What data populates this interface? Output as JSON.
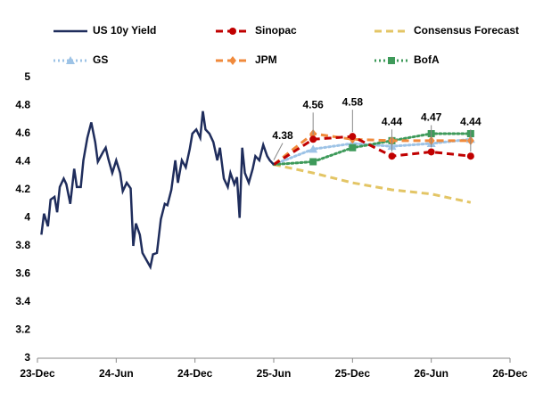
{
  "chart_data": {
    "type": "line",
    "xlim": [
      0,
      36
    ],
    "xticks": [
      {
        "value": 0,
        "label": "23-Dec"
      },
      {
        "value": 6,
        "label": "24-Jun"
      },
      {
        "value": 12,
        "label": "24-Dec"
      },
      {
        "value": 18,
        "label": "25-Jun"
      },
      {
        "value": 24,
        "label": "25-Dec"
      },
      {
        "value": 30,
        "label": "26-Jun"
      },
      {
        "value": 36,
        "label": "26-Dec"
      }
    ],
    "ylim": [
      3,
      5
    ],
    "yticks": [
      3,
      3.2,
      3.4,
      3.6,
      3.8,
      4,
      4.2,
      4.4,
      4.6,
      4.8,
      5
    ],
    "grid": false,
    "legend": "top",
    "series": [
      {
        "name": "US 10y Yield",
        "color": "#1f2d5c",
        "style": "solid",
        "marker": "none",
        "x": [
          0.3,
          0.5,
          0.8,
          1.0,
          1.3,
          1.5,
          1.7,
          2.0,
          2.2,
          2.5,
          2.8,
          3.0,
          3.3,
          3.5,
          3.8,
          4.1,
          4.4,
          4.6,
          5.0,
          5.2,
          5.4,
          5.7,
          6.0,
          6.3,
          6.5,
          6.8,
          7.1,
          7.3,
          7.5,
          7.8,
          8.0,
          8.3,
          8.6,
          8.8,
          9.1,
          9.4,
          9.7,
          9.9,
          10.2,
          10.5,
          10.7,
          11.0,
          11.3,
          11.6,
          11.8,
          12.1,
          12.4,
          12.6,
          12.8,
          13.1,
          13.4,
          13.7,
          13.9,
          14.2,
          14.5,
          14.7,
          15.0,
          15.2,
          15.4,
          15.6,
          15.8,
          16.1,
          16.4,
          16.6,
          16.9,
          17.2,
          17.5,
          17.7,
          18.0
        ],
        "values": [
          3.88,
          4.03,
          3.94,
          4.13,
          4.15,
          4.04,
          4.22,
          4.28,
          4.24,
          4.1,
          4.35,
          4.22,
          4.22,
          4.41,
          4.57,
          4.68,
          4.54,
          4.4,
          4.47,
          4.5,
          4.42,
          4.32,
          4.41,
          4.32,
          4.19,
          4.25,
          4.21,
          3.8,
          3.96,
          3.88,
          3.75,
          3.7,
          3.65,
          3.74,
          3.75,
          3.99,
          4.1,
          4.09,
          4.2,
          4.41,
          4.25,
          4.41,
          4.36,
          4.49,
          4.6,
          4.63,
          4.57,
          4.76,
          4.63,
          4.6,
          4.54,
          4.41,
          4.5,
          4.28,
          4.22,
          4.32,
          4.24,
          4.29,
          4.0,
          4.5,
          4.32,
          4.25,
          4.35,
          4.44,
          4.41,
          4.52,
          4.44,
          4.41,
          4.38
        ]
      },
      {
        "name": "Sinopac",
        "color": "#c00000",
        "style": "dashed",
        "marker": "circle",
        "x": [
          18,
          21,
          24,
          27,
          30,
          33
        ],
        "values": [
          4.38,
          4.56,
          4.58,
          4.44,
          4.47,
          4.44
        ],
        "labels": true
      },
      {
        "name": "Consensus Forecast",
        "color": "#e3c565",
        "style": "dashed",
        "marker": "none",
        "x": [
          18,
          21,
          24,
          27,
          30,
          33
        ],
        "values": [
          4.38,
          4.32,
          4.25,
          4.2,
          4.17,
          4.11
        ]
      },
      {
        "name": "GS",
        "color": "#9dc3e6",
        "style": "dotted",
        "marker": "triangle",
        "x": [
          18,
          21,
          24,
          27,
          30,
          33
        ],
        "values": [
          4.38,
          4.49,
          4.53,
          4.51,
          4.53,
          4.56
        ]
      },
      {
        "name": "JPM",
        "color": "#f08a3c",
        "style": "dashed",
        "marker": "diamond",
        "x": [
          18,
          21,
          24,
          27,
          30,
          33
        ],
        "values": [
          4.38,
          4.6,
          4.56,
          4.55,
          4.55,
          4.55
        ]
      },
      {
        "name": "BofA",
        "color": "#3e9a5a",
        "style": "dotted",
        "marker": "square",
        "x": [
          18,
          21,
          24,
          27,
          30,
          33
        ],
        "values": [
          4.38,
          4.4,
          4.5,
          4.55,
          4.6,
          4.6
        ]
      }
    ]
  }
}
